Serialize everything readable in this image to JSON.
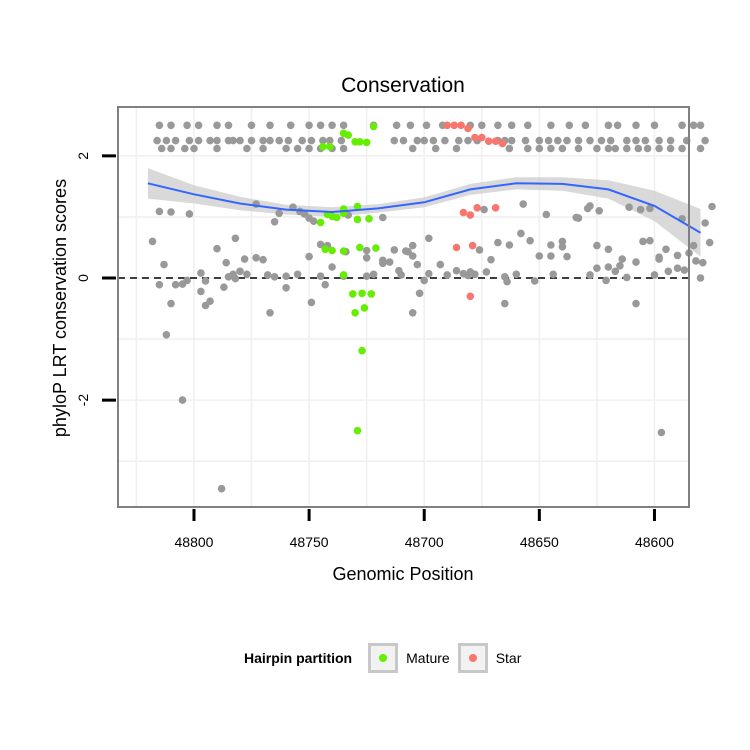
{
  "chart_data": {
    "type": "scatter",
    "title": "Conservation",
    "xlabel": "Genomic Position",
    "ylabel": "phyloP LRT conservation scores",
    "x_reversed": true,
    "xlim": [
      48585,
      48833
    ],
    "ylim": [
      -3.75,
      2.8
    ],
    "x_ticks": [
      48800,
      48750,
      48700,
      48650,
      48600
    ],
    "x_tick_labels": [
      "48800",
      "48750",
      "48700",
      "48650",
      "48600"
    ],
    "y_ticks": [
      2,
      0,
      -2
    ],
    "y_tick_labels": [
      "2",
      "0",
      "-2"
    ],
    "reference_line": {
      "y": 0,
      "style": "dashed"
    },
    "legend": {
      "title": "Hairpin partition",
      "position": "bottom",
      "entries": [
        {
          "label": "Mature",
          "color": "#66ee00"
        },
        {
          "label": "Star",
          "color": "#f8766d"
        }
      ]
    },
    "colors": {
      "background_points": "#999999",
      "Mature": "#66ee00",
      "Star": "#f8766d",
      "smooth_line": "#3366ff",
      "ci_band": "#cccccc",
      "grid": "#f0f0f0",
      "panel_border": "#808080"
    },
    "smooth": {
      "x": [
        48820,
        48800,
        48780,
        48760,
        48740,
        48720,
        48700,
        48680,
        48660,
        48640,
        48620,
        48600,
        48580
      ],
      "y": [
        1.55,
        1.37,
        1.22,
        1.12,
        1.08,
        1.14,
        1.24,
        1.45,
        1.55,
        1.54,
        1.45,
        1.18,
        0.74
      ],
      "lower": [
        1.3,
        1.22,
        1.11,
        1.04,
        1.0,
        1.07,
        1.16,
        1.36,
        1.45,
        1.43,
        1.3,
        0.93,
        0.35
      ],
      "upper": [
        1.8,
        1.52,
        1.33,
        1.2,
        1.16,
        1.21,
        1.32,
        1.54,
        1.65,
        1.65,
        1.6,
        1.43,
        1.13
      ]
    },
    "series": [
      {
        "name": "background",
        "x": [
          48818,
          48813,
          48797,
          48786,
          48782,
          48778,
          48770,
          48760,
          48750,
          48745,
          48740,
          48735,
          48725,
          48722,
          48718,
          48715,
          48710,
          48705,
          48702,
          48700,
          48690,
          48678,
          48665,
          48660,
          48650,
          48645,
          48640,
          48625,
          48620,
          48615,
          48608,
          48605,
          48600,
          48595,
          48590,
          48585,
          48582,
          48580,
          48576,
          48812,
          48805,
          48795,
          48790,
          48783,
          48777,
          48767,
          48765,
          48755,
          48749,
          48743,
          48711,
          48705,
          48681,
          48665,
          48652,
          48644,
          48628,
          48621,
          48612,
          48594,
          48587,
          48579,
          48815,
          48810,
          48802,
          48797,
          48793,
          48785,
          48780,
          48773,
          48768,
          48763,
          48760,
          48754,
          48750,
          48745,
          48742,
          48733,
          48725,
          48718,
          48707,
          48703,
          48698,
          48686,
          48680,
          48676,
          48673,
          48671,
          48664,
          48657,
          48647,
          48640,
          48633,
          48629,
          48624,
          48617,
          48611,
          48606,
          48602,
          48598,
          48590,
          48583,
          48578,
          48575,
          48815,
          48810,
          48808,
          48803,
          48795,
          48787,
          48782,
          48773,
          48765,
          48757,
          48752,
          48748,
          48734,
          48725,
          48718,
          48713,
          48708,
          48705,
          48698,
          48693,
          48683,
          48674,
          48668,
          48663,
          48658,
          48654,
          48645,
          48638,
          48634,
          48628,
          48625,
          48620,
          48614,
          48608,
          48602,
          48598,
          48588,
          48815,
          48810,
          48803,
          48798,
          48790,
          48785,
          48775,
          48767,
          48758,
          48750,
          48745,
          48740,
          48735,
          48722,
          48712,
          48706,
          48699,
          48692,
          48680,
          48675,
          48668,
          48662,
          48655,
          48645,
          48637,
          48630,
          48620,
          48616,
          48608,
          48600,
          48588,
          48583,
          48580,
          48816,
          48812,
          48808,
          48802,
          48798,
          48793,
          48790,
          48785,
          48783,
          48780,
          48775,
          48770,
          48767,
          48763,
          48759,
          48753,
          48749,
          48744,
          48741,
          48736,
          48713,
          48709,
          48703,
          48700,
          48696,
          48691,
          48685,
          48681,
          48677,
          48668,
          48665,
          48662,
          48656,
          48650,
          48646,
          48642,
          48638,
          48633,
          48628,
          48623,
          48619,
          48612,
          48608,
          48604,
          48598,
          48593,
          48586,
          48578,
          48814,
          48810,
          48804,
          48800,
          48790,
          48777,
          48770,
          48760,
          48755,
          48750,
          48745,
          48740,
          48735,
          48705,
          48695,
          48686,
          48663,
          48655,
          48650,
          48645,
          48640,
          48633,
          48625,
          48620,
          48617,
          48612,
          48607,
          48603,
          48598,
          48593,
          48588,
          48580
        ],
        "y": [
          0.6,
          0.22,
          -0.22,
          0.25,
          0.65,
          0.31,
          0.3,
          0.03,
          0.35,
          0.03,
          0.18,
          0.03,
          0.03,
          0.06,
          0.29,
          0.26,
          0.05,
          0.36,
          -0.25,
          -0.04,
          0.05,
          0.06,
          -0.42,
          0.06,
          0.36,
          0.54,
          0.6,
          0.53,
          0.18,
          0.2,
          0.26,
          0.6,
          0.05,
          0.47,
          0.16,
          0.41,
          0.28,
          0.0,
          0.58,
          -0.93,
          -0.1,
          -0.45,
          0.48,
          0.06,
          0.06,
          -0.57,
          0.02,
          0.06,
          -0.4,
          -0.11,
          0.12,
          -0.57,
          0.04,
          0.02,
          -0.05,
          0.06,
          0.05,
          -0.04,
          0.01,
          0.11,
          0.13,
          0.25,
          1.09,
          1.08,
          1.05,
          0.08,
          -0.38,
          0.02,
          0.11,
          1.21,
          0.05,
          1.06,
          -0.16,
          1.09,
          0.98,
          0.55,
          0.53,
          1.03,
          0.33,
          0.99,
          0.43,
          0.22,
          0.07,
          0.12,
          0.1,
          0.46,
          0.1,
          0.3,
          -0.06,
          1.21,
          1.04,
          0.51,
          0.98,
          1.14,
          1.1,
          0.11,
          1.16,
          1.12,
          1.14,
          0.34,
          0.37,
          0.53,
          0.9,
          1.17,
          -0.11,
          -0.42,
          -0.11,
          -0.04,
          -0.05,
          -0.15,
          -0.01,
          0.33,
          0.92,
          1.16,
          1.05,
          0.93,
          0.43,
          0.45,
          0.24,
          0.46,
          0.44,
          0.53,
          0.65,
          0.22,
          0.07,
          1.12,
          0.58,
          0.54,
          0.73,
          0.61,
          0.36,
          0.35,
          0.99,
          1.18,
          0.16,
          0.47,
          0.31,
          -0.42,
          0.61,
          0.31,
          0.97,
          2.5,
          2.5,
          2.5,
          2.5,
          2.5,
          2.5,
          2.5,
          2.5,
          2.5,
          2.5,
          2.5,
          2.5,
          2.5,
          2.5,
          2.5,
          2.5,
          2.5,
          2.5,
          2.5,
          2.5,
          2.5,
          2.5,
          2.5,
          2.5,
          2.5,
          2.5,
          2.5,
          2.5,
          2.5,
          2.5,
          2.5,
          2.5,
          2.5,
          2.25,
          2.25,
          2.25,
          2.25,
          2.25,
          2.25,
          2.25,
          2.25,
          2.25,
          2.25,
          2.25,
          2.25,
          2.25,
          2.25,
          2.25,
          2.25,
          2.25,
          2.25,
          2.25,
          2.25,
          2.25,
          2.25,
          2.25,
          2.25,
          2.25,
          2.25,
          2.25,
          2.25,
          2.25,
          2.25,
          2.25,
          2.25,
          2.25,
          2.25,
          2.25,
          2.25,
          2.25,
          2.25,
          2.25,
          2.25,
          2.25,
          2.25,
          2.25,
          2.25,
          2.25,
          2.25,
          2.25,
          2.25,
          2.12,
          2.12,
          2.12,
          2.12,
          2.12,
          2.12,
          2.12,
          2.12,
          2.12,
          2.12,
          2.12,
          2.12,
          2.12,
          2.12,
          2.12,
          2.12,
          2.12,
          2.12,
          2.12,
          2.12,
          2.12,
          2.12,
          2.12,
          2.12,
          2.12,
          2.12,
          2.12,
          2.12,
          2.12,
          2.12,
          2.12,
          2.12
        ]
      },
      {
        "name": "background",
        "x": [
          48805,
          48788,
          48597
        ],
        "y": [
          -2.0,
          -3.45,
          -2.53
        ]
      },
      {
        "name": "Mature",
        "x": [
          48744,
          48741,
          48735,
          48733,
          48730,
          48728,
          48725,
          48722,
          48742,
          48738,
          48735,
          48729,
          48724,
          48743,
          48740,
          48735,
          48728,
          48721,
          48735,
          48727,
          48723,
          48731,
          48726,
          48730,
          48727,
          48745,
          48740,
          48735,
          48729
        ],
        "y": [
          2.15,
          2.15,
          2.37,
          2.34,
          2.23,
          2.23,
          2.22,
          2.48,
          1.04,
          0.99,
          1.06,
          0.96,
          0.97,
          0.47,
          0.45,
          0.44,
          0.5,
          0.49,
          0.05,
          -0.25,
          -0.26,
          -0.26,
          -0.49,
          -0.57,
          -1.19,
          0.91,
          1.01,
          1.13,
          1.17
        ],
        "color": "#66ee00"
      },
      {
        "name": "Star",
        "x": [
          48690,
          48687,
          48684,
          48681,
          48678,
          48675,
          48672,
          48669,
          48666,
          48683,
          48680,
          48677,
          48669,
          48686,
          48679,
          48680
        ],
        "y": [
          2.5,
          2.5,
          2.5,
          2.45,
          2.3,
          2.3,
          2.24,
          2.24,
          2.2,
          1.07,
          1.03,
          1.15,
          1.15,
          0.5,
          0.53,
          -0.3
        ],
        "color": "#f8766d"
      },
      {
        "name": "Mature",
        "x": [
          48729
        ],
        "y": [
          -2.5
        ],
        "color": "#66ee00"
      }
    ]
  }
}
